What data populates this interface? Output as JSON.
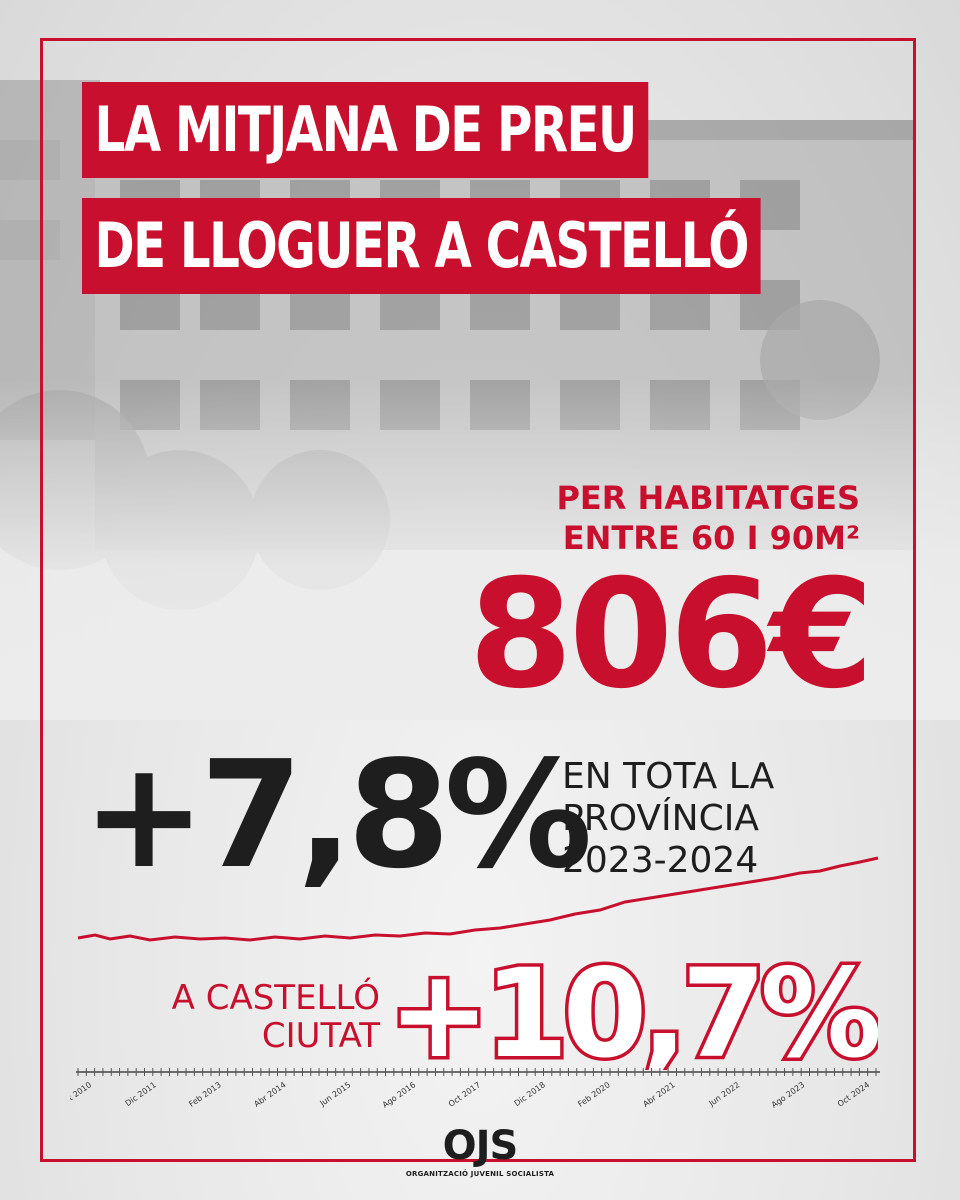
{
  "title": {
    "line1": "LA MITJANA DE PREU",
    "line2": "DE LLOGUER A CASTELLÓ"
  },
  "subtitle": {
    "line1": "PER HABITATGES",
    "line2": "ENTRE 60 I 90M²"
  },
  "price": "806€",
  "province": {
    "change": "+7,8%",
    "line1": "EN TOTA LA",
    "line2": "PROVÍNCIA",
    "line3": "2023-2024"
  },
  "city": {
    "line1": "A CASTELLÓ",
    "line2": "CIUTAT",
    "change": "+10,7%"
  },
  "timeline": {
    "labels": [
      "ct 2010",
      "Dic 2011",
      "Feb 2013",
      "Abr 2014",
      "Jun 2015",
      "Ago 2016",
      "Oct 2017",
      "Dic 2018",
      "Feb 2020",
      "Abr 2021",
      "Jun 2022",
      "Ago 2023",
      "Oct 2024"
    ]
  },
  "logo": {
    "name": "OJS",
    "tagline": "ORGANITZACIÓ JUVENIL SOCIALISTA"
  },
  "colors": {
    "accent": "#c8102e",
    "text": "#1e1e1e",
    "background": "#e9e9e9"
  }
}
